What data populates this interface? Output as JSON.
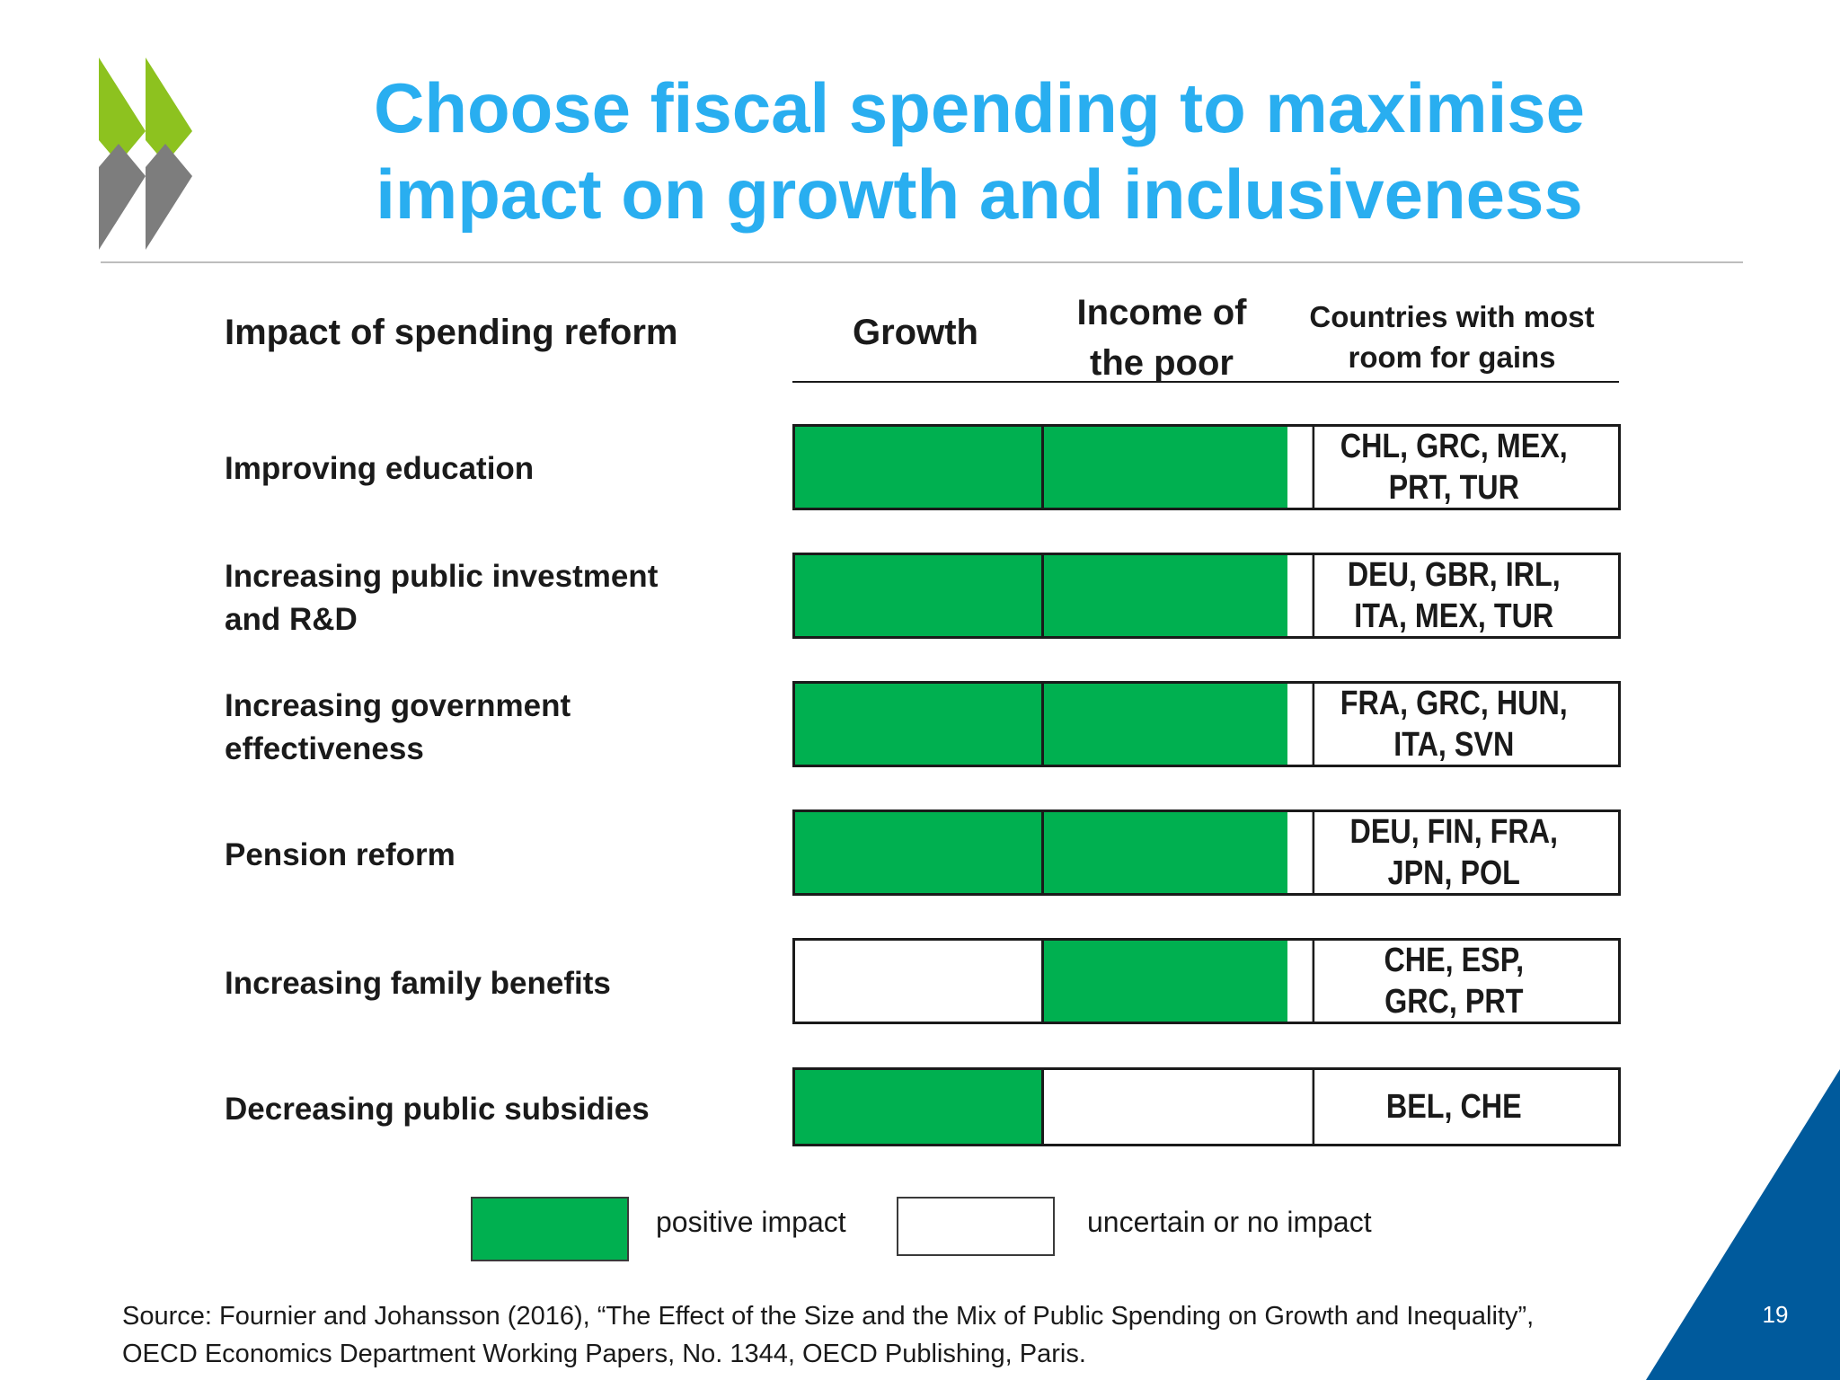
{
  "slide": {
    "title_line1": "Choose fiscal spending to maximise",
    "title_line2": "impact on growth and inclusiveness",
    "page_number": "19"
  },
  "table": {
    "header_impact": "Impact of spending reform",
    "header_growth": "Growth",
    "header_income_line1": "Income of",
    "header_income_line2": "the poor",
    "header_countries_line1": "Countries with most",
    "header_countries_line2": "room for gains",
    "rows": [
      {
        "label_line1": "Improving education",
        "label_line2": "",
        "growth_positive": true,
        "income_positive": true,
        "countries_line1": "CHL, GRC, MEX,",
        "countries_line2": "PRT, TUR"
      },
      {
        "label_line1": "Increasing public investment",
        "label_line2": "and R&D",
        "growth_positive": true,
        "income_positive": true,
        "countries_line1": "DEU, GBR, IRL,",
        "countries_line2": "ITA, MEX, TUR"
      },
      {
        "label_line1": "Increasing government",
        "label_line2": "effectiveness",
        "growth_positive": true,
        "income_positive": true,
        "countries_line1": "FRA, GRC, HUN,",
        "countries_line2": "ITA, SVN"
      },
      {
        "label_line1": "Pension reform",
        "label_line2": "",
        "growth_positive": true,
        "income_positive": true,
        "countries_line1": "DEU, FIN, FRA,",
        "countries_line2": "JPN, POL"
      },
      {
        "label_line1": "Increasing family benefits",
        "label_line2": "",
        "growth_positive": false,
        "income_positive": true,
        "countries_line1": "CHE, ESP,",
        "countries_line2": "GRC, PRT"
      },
      {
        "label_line1": "Decreasing public subsidies",
        "label_line2": "",
        "growth_positive": true,
        "income_positive": false,
        "countries_line1": "BEL, CHE",
        "countries_line2": ""
      }
    ]
  },
  "legend": {
    "positive_label": "positive impact",
    "uncertain_label": "uncertain or no impact"
  },
  "source": {
    "line1": "Source: Fournier and Johansson (2016), “The Effect of the Size and the Mix of Public Spending on Growth and Inequality”,",
    "line2": "OECD Economics Department Working Papers, No. 1344, OECD Publishing, Paris."
  },
  "colors": {
    "title": "#29aef0",
    "positive": "#00b050",
    "logo_green": "#8dc21f",
    "logo_grey": "#7d7d7d",
    "corner_blue": "#005a9c"
  }
}
